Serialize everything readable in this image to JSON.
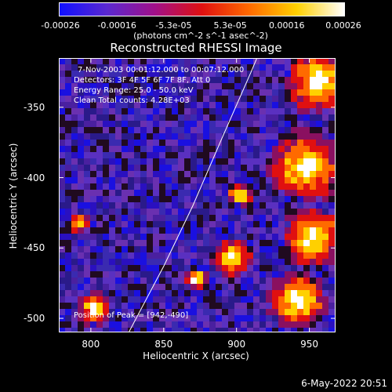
{
  "colorbar": {
    "ticks": [
      "-0.00026",
      "-0.00016",
      "-5.3e-05",
      "5.3e-05",
      "0.00016",
      "0.00026"
    ],
    "units_line": "(photons cm^-2 s^-1 asec^-2)",
    "colors": [
      "#1010ff",
      "#5a28d0",
      "#a0108a",
      "#e01010",
      "#ff6a00",
      "#ffd000",
      "#ffffff"
    ]
  },
  "header": {
    "title": "Reconstructed RHESSI Image"
  },
  "annotations": {
    "line1": "7-Nov-2003 00:01:12.000 to 00:07:12.000",
    "line2": "Detectors: 3F 4F 5F 6F 7F 8F, Att 0",
    "line3": "Energy Range: 25.0 - 50.0 keV",
    "line4": "Clean    Total counts: 4.28E+03",
    "peak": "Position of Peak = [942,-490]"
  },
  "footer": {
    "date_stamp": "6-May-2022 20:51"
  },
  "chart_data": {
    "type": "heatmap",
    "title": "Reconstructed RHESSI Image",
    "xlabel": "Heliocentric X (arcsec)",
    "ylabel": "Heliocentric Y (arcsec)",
    "xlim": [
      778,
      968
    ],
    "ylim": [
      -510,
      -315
    ],
    "xticks": [
      800,
      850,
      900,
      950
    ],
    "yticks": [
      -350,
      -400,
      -450,
      -500
    ],
    "xtick_labels": [
      "800",
      "850",
      "900",
      "950"
    ],
    "ytick_labels": [
      "-350",
      "-400",
      "-450",
      "-500"
    ],
    "color_range": [
      -0.00026,
      0.00026
    ],
    "peak": [
      942,
      -490
    ],
    "limb_curve": [
      [
        826,
        -510
      ],
      [
        850,
        -463
      ],
      [
        870,
        -420
      ],
      [
        890,
        -372
      ],
      [
        910,
        -325
      ],
      [
        914,
        -315
      ]
    ]
  }
}
